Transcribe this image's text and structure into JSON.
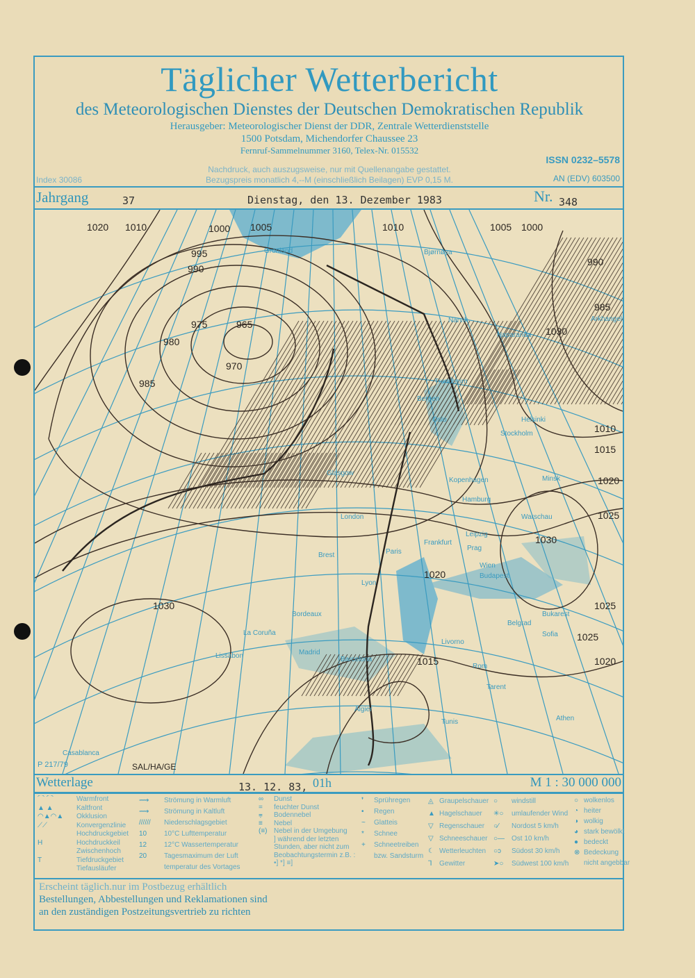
{
  "header": {
    "title": "Täglicher Wetterbericht",
    "subtitle": "des Meteorologischen Dienstes der Deutschen Demokratischen Republik",
    "publisher": "Herausgeber: Meteorologischer Dienst der DDR, Zentrale Wetterdienststelle",
    "address": "1500 Potsdam, Michendorfer Chaussee 23",
    "phone": "Fernruf-Sammelnummer 3160,  Telex-Nr. 015532",
    "reprint": "Nachdruck, auch auszugsweise, nur mit Quellenangabe gestattet.",
    "price": "Bezugspreis monatlich 4,--M (einschließlich Beilagen) EVP 0,15 M.",
    "index": "Index 30086",
    "issn": "ISSN 0232–5578",
    "an": "AN (EDV) 603500"
  },
  "issue": {
    "jahrgang_label": "Jahrgang",
    "jahrgang": "37",
    "date": "Dienstag, den 13. Dezember 1983",
    "nr_label": "Nr.",
    "nr": "348"
  },
  "map": {
    "pressure_labels": [
      "1020",
      "1010",
      "1000",
      "1005",
      "1010",
      "1005",
      "1000",
      "995",
      "990",
      "985",
      "980",
      "975",
      "970",
      "965",
      "1030",
      "990",
      "985",
      "1010",
      "1015",
      "1020",
      "1025",
      "1030",
      "1020",
      "1025",
      "1030",
      "1015",
      "1025",
      "1020"
    ],
    "cities": [
      "Grönland",
      "Bjørnøya",
      "Narvik",
      "Haparanda",
      "Trondheim",
      "Bergen",
      "Oslo",
      "Helsinki",
      "Stockholm",
      "Glasgow",
      "Kopenhagen",
      "Hamburg",
      "Minsk",
      "Warschau",
      "London",
      "Leipzig",
      "Prag",
      "Frankfurt",
      "Paris",
      "Brest",
      "Wien",
      "Budapest",
      "Lyon",
      "Bordeaux",
      "La Coruña",
      "Belgrad",
      "Bukarest",
      "Sofia",
      "Livorno",
      "Rom",
      "Barcelona",
      "Madrid",
      "Lissabon",
      "Tarent",
      "Athen",
      "Algier",
      "Tunis",
      "Casablanca",
      "Arkhangelsk"
    ],
    "corner_code": "P 217/79",
    "signature": "SAL/HA/GE",
    "colors": {
      "isobar": "#3b2e25",
      "grid": "#3a9bc0",
      "water": "#4aa3c8"
    }
  },
  "caption": {
    "label": "Wetterlage",
    "date": "13. 12. 83,",
    "time": "01h",
    "scale": "M 1 : 30 000 000"
  },
  "legend": {
    "col1": [
      "Warmfront",
      "Kaltfront",
      "Okklusion",
      "Konvergenzlinie",
      "Hochdruckgebiet",
      "Hochdruckkeil",
      "Zwischenhoch",
      "Tiefdruckgebiet",
      "Tiefausläufer"
    ],
    "col2": [
      "Strömung in Warmluft",
      "Strömung in Kaltluft",
      "Niederschlagsgebiet",
      "10°C Lufttemperatur",
      "12°C Wassertemperatur",
      "Tagesmaximum der Luft",
      "temperatur des Vortages"
    ],
    "col2_symbols": [
      "10",
      "12",
      "20"
    ],
    "col3": [
      "Dunst",
      "feuchter Dunst",
      "Bodennebel",
      "Nebel",
      "Nebel in der Umgebung",
      "] während der letzten Stunden, aber nicht zum",
      "Beobachtungstermin z.B. :  •]  *]  ≡]"
    ],
    "col4": [
      "Sprühregen",
      "Regen",
      "Glatteis",
      "Schnee",
      "Schneetreiben",
      "bzw. Sandsturm"
    ],
    "col5": [
      "Graupelschauer",
      "Hagelschauer",
      "Regenschauer",
      "Schneeschauer",
      "Wetterleuchten",
      "Gewitter"
    ],
    "col6": [
      "windstill",
      "umlaufender Wind",
      "Nordost     5 km/h",
      "Ost       10 km/h",
      "Südost    30 km/h",
      "Südwest 100 km/h"
    ],
    "col7": [
      "wolkenlos",
      "heiter",
      "wolkig",
      "stark bewölkt",
      "bedeckt",
      "Bedeckung",
      "nicht angebbar"
    ]
  },
  "footer": {
    "line1": "Erscheint täglich.nur im Postbezug erhältlich",
    "line2": "Bestellungen, Abbestellungen und Reklamationen sind",
    "line3": "an den zuständigen Postzeitungsvertrieb zu richten"
  }
}
